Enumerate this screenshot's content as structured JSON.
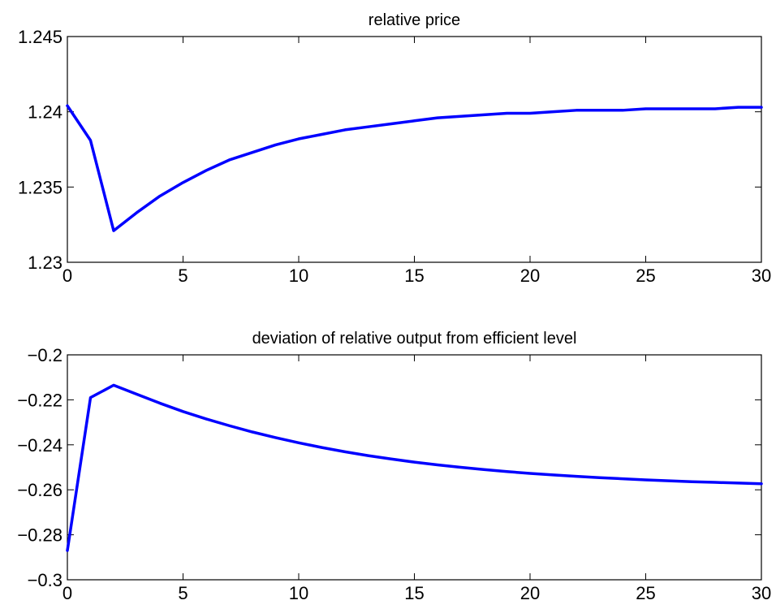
{
  "chart_data": [
    {
      "type": "line",
      "title": "relative price",
      "xlabel": "",
      "ylabel": "",
      "xlim": [
        0,
        30
      ],
      "ylim": [
        1.23,
        1.245
      ],
      "xticks": [
        "0",
        "5",
        "10",
        "15",
        "20",
        "25",
        "30"
      ],
      "yticks": [
        "1.23",
        "1.235",
        "1.24",
        "1.245"
      ],
      "grid": false,
      "color": "#0000ff",
      "series": [
        {
          "x": [
            0,
            1,
            2,
            3,
            4,
            5,
            6,
            7,
            8,
            9,
            10,
            11,
            12,
            13,
            14,
            15,
            16,
            17,
            18,
            19,
            20,
            21,
            22,
            23,
            24,
            25,
            26,
            27,
            28,
            29,
            30
          ],
          "values": [
            1.2404,
            1.2381,
            1.2321,
            1.2333,
            1.2344,
            1.2353,
            1.2361,
            1.2368,
            1.2373,
            1.2378,
            1.2382,
            1.2385,
            1.2388,
            1.239,
            1.2392,
            1.2394,
            1.2396,
            1.2397,
            1.2398,
            1.2399,
            1.2399,
            1.24,
            1.2401,
            1.2401,
            1.2401,
            1.2402,
            1.2402,
            1.2402,
            1.2402,
            1.2403,
            1.2403
          ]
        }
      ]
    },
    {
      "type": "line",
      "title": "deviation of relative output from efficient level",
      "xlabel": "",
      "ylabel": "",
      "xlim": [
        0,
        30
      ],
      "ylim": [
        -0.3,
        -0.2
      ],
      "xticks": [
        "0",
        "5",
        "10",
        "15",
        "20",
        "25",
        "30"
      ],
      "yticks": [
        "−0.3",
        "−0.28",
        "−0.26",
        "−0.24",
        "−0.22",
        "−0.2"
      ],
      "grid": false,
      "color": "#0000ff",
      "series": [
        {
          "x": [
            0,
            1,
            2,
            3,
            4,
            5,
            6,
            7,
            8,
            9,
            10,
            11,
            12,
            13,
            14,
            15,
            16,
            17,
            18,
            19,
            20,
            21,
            22,
            23,
            24,
            25,
            26,
            27,
            28,
            29,
            30
          ],
          "values": [
            -0.287,
            -0.219,
            -0.2135,
            -0.2175,
            -0.2215,
            -0.2252,
            -0.2285,
            -0.2315,
            -0.2343,
            -0.2368,
            -0.2391,
            -0.2412,
            -0.2431,
            -0.2448,
            -0.2463,
            -0.2477,
            -0.2489,
            -0.25,
            -0.251,
            -0.2519,
            -0.2527,
            -0.2534,
            -0.254,
            -0.2546,
            -0.2551,
            -0.2556,
            -0.256,
            -0.2564,
            -0.2567,
            -0.257,
            -0.2573
          ]
        }
      ]
    }
  ]
}
